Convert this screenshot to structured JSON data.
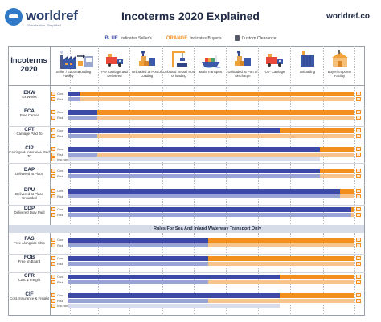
{
  "brand": {
    "name": "worldref",
    "tagline": "Globalization. Simplified."
  },
  "title": "Incoterms 2020 Explained",
  "site": "worldref.co",
  "legend": {
    "blue_word": "BLUE",
    "blue_text": "Indicates Seller's",
    "orange_word": "ORANGE",
    "orange_text": "Indicates Buyer's",
    "clearance_text": "Custom Clearance"
  },
  "corner": "Incoterms 2020",
  "stages": [
    {
      "icon": "factory-icon",
      "label": "Seller / Exporter Facility"
    },
    {
      "icon": "loading-arrow-icon",
      "label": "Loading"
    },
    {
      "icon": "truck-icon",
      "label": "Pre Carriage and Delivered"
    },
    {
      "icon": "port-crates-icon",
      "label": "Unloaded at Port of Loading"
    },
    {
      "icon": "crane-icon",
      "label": "Onboard Vessel Port of loading"
    },
    {
      "icon": "ship-icon",
      "label": "Main Transport"
    },
    {
      "icon": "port-crates-icon",
      "label": "Unloaded at Port of Discharge"
    },
    {
      "icon": "truck-icon",
      "label": "On- Carriage"
    },
    {
      "icon": "container-icon",
      "label": "Unloading"
    },
    {
      "icon": "warehouse-icon",
      "label": "Buyer/ Importer Facility"
    }
  ],
  "labels": {
    "cost": "Cost",
    "risk": "Risk",
    "insurance": "Insurance"
  },
  "section_title": "Rules For Sea And Inland Waterway Transport Only",
  "terms": [
    {
      "code": "EXW",
      "name": "Ex Works",
      "cost_seller": 0.04,
      "risk_seller": 0.04,
      "insurance": false
    },
    {
      "code": "FCA",
      "name": "Free Carrier",
      "cost_seller": 0.1,
      "risk_seller": 0.1,
      "insurance": false
    },
    {
      "code": "CPT",
      "name": "Carriage Paid To",
      "cost_seller": 0.74,
      "risk_seller": 0.1,
      "insurance": false
    },
    {
      "code": "CIP",
      "name": "Carriage & Insurance Paid To",
      "cost_seller": 0.88,
      "risk_seller": 0.1,
      "insurance": true
    },
    {
      "code": "DAP",
      "name": "Delivered at Place",
      "cost_seller": 0.88,
      "risk_seller": 0.88,
      "insurance": false
    },
    {
      "code": "DPU",
      "name": "Delivered at Place Unloaded",
      "cost_seller": 0.95,
      "risk_seller": 0.95,
      "insurance": false
    },
    {
      "code": "DDP",
      "name": "Delivered Duty Paid",
      "cost_seller": 0.99,
      "risk_seller": 0.99,
      "insurance": false
    },
    {
      "code": "FAS",
      "name": "Free Alongside Ship",
      "cost_seller": 0.49,
      "risk_seller": 0.49,
      "insurance": false
    },
    {
      "code": "FOB",
      "name": "Free on Board",
      "cost_seller": 0.49,
      "risk_seller": 0.49,
      "insurance": false
    },
    {
      "code": "CFR",
      "name": "Cost & Freight",
      "cost_seller": 0.74,
      "risk_seller": 0.49,
      "insurance": false
    },
    {
      "code": "CIF",
      "name": "Cost, Insurance & Freight",
      "cost_seller": 0.74,
      "risk_seller": 0.49,
      "insurance": true
    }
  ]
}
